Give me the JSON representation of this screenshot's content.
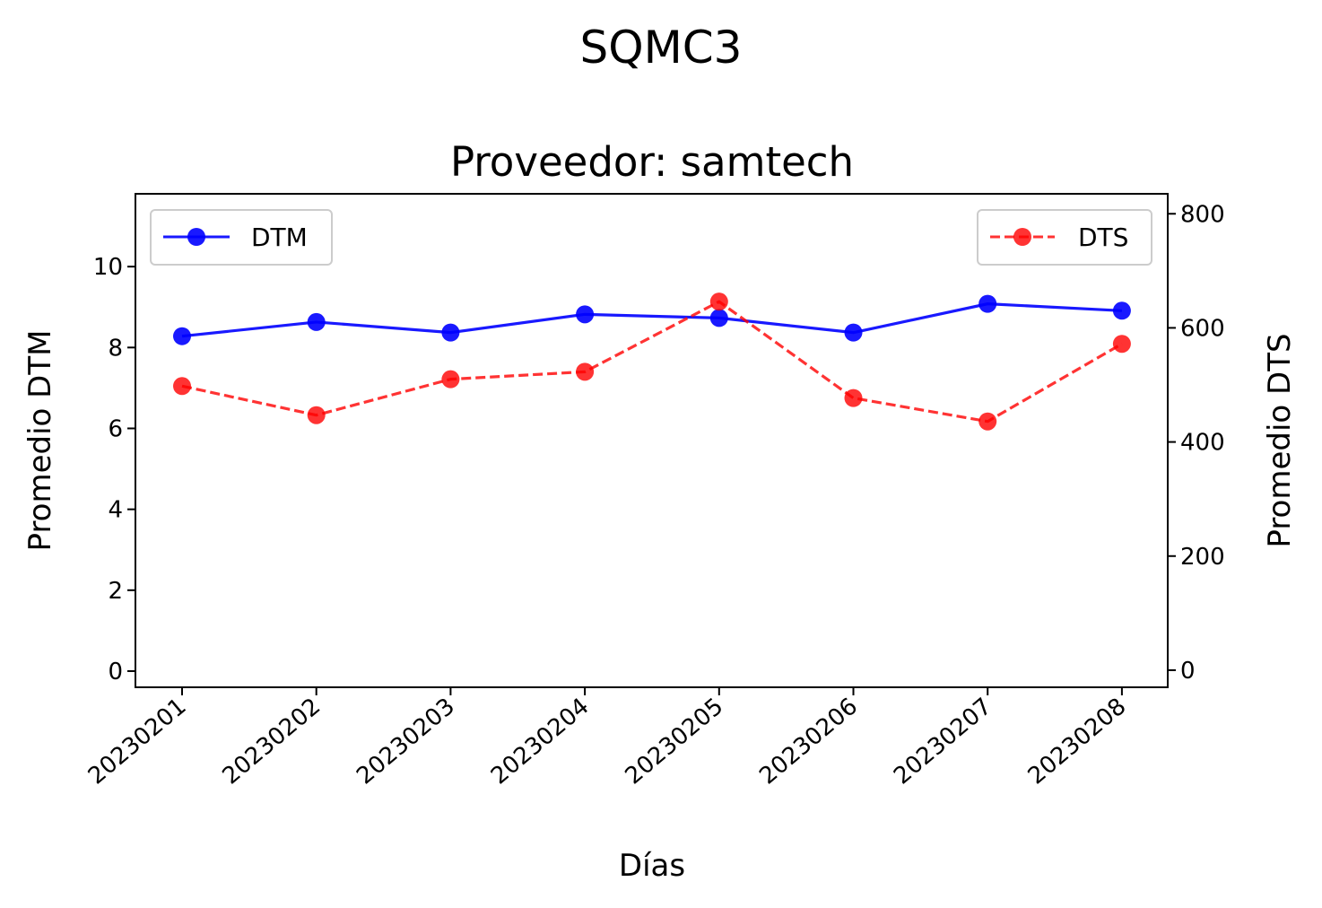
{
  "chart_data": {
    "type": "line",
    "suptitle": "SQMC3",
    "title": "Proveedor: samtech",
    "xlabel": "Días",
    "ylabel_left": "Promedio DTM",
    "ylabel_right": "Promedio DTS",
    "categories": [
      "20230201",
      "20230202",
      "20230203",
      "20230204",
      "20230205",
      "20230206",
      "20230207",
      "20230208"
    ],
    "y_left_ticks": [
      "0",
      "2",
      "4",
      "6",
      "8",
      "10"
    ],
    "y_right_ticks": [
      "0",
      "200",
      "400",
      "600",
      "800"
    ],
    "ylim_left": [
      -0.4,
      11.8
    ],
    "ylim_right": [
      -30,
      835
    ],
    "grid": false,
    "series": [
      {
        "name": "DTM",
        "axis": "left",
        "values": [
          8.28,
          8.63,
          8.37,
          8.82,
          8.73,
          8.37,
          9.08,
          8.91
        ],
        "color": "#0000ff",
        "line_style": "solid",
        "legend_position": "upper-left"
      },
      {
        "name": "DTS",
        "axis": "right",
        "values": [
          498,
          447,
          510,
          523,
          646,
          477,
          436,
          572
        ],
        "color": "#ff0000",
        "line_style": "dashed",
        "legend_position": "upper-right"
      }
    ]
  }
}
